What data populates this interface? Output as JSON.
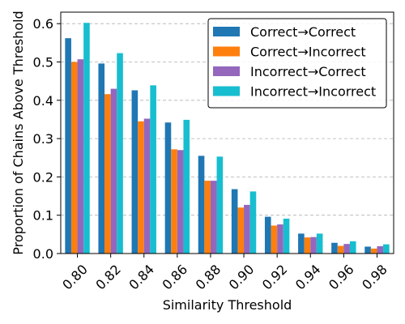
{
  "chart_data": {
    "type": "bar",
    "title": "",
    "xlabel": "Similarity Threshold",
    "ylabel": "Proportion of Chains Above Threshold",
    "ylim": [
      0,
      0.63
    ],
    "yticks": [
      0.0,
      0.1,
      0.2,
      0.3,
      0.4,
      0.5,
      0.6
    ],
    "ytick_labels": [
      "0.0",
      "0.1",
      "0.2",
      "0.3",
      "0.4",
      "0.5",
      "0.6"
    ],
    "grid": "y-dashed",
    "legend_position": "top-right",
    "categories": [
      "0.80",
      "0.82",
      "0.84",
      "0.86",
      "0.88",
      "0.90",
      "0.92",
      "0.94",
      "0.96",
      "0.98"
    ],
    "series": [
      {
        "name": "Correct→Correct",
        "color": "#1f77b4",
        "values": [
          0.562,
          0.496,
          0.426,
          0.342,
          0.255,
          0.168,
          0.096,
          0.052,
          0.028,
          0.018
        ]
      },
      {
        "name": "Correct→Incorrect",
        "color": "#ff7f0e",
        "values": [
          0.5,
          0.416,
          0.345,
          0.272,
          0.19,
          0.12,
          0.073,
          0.042,
          0.02,
          0.013
        ]
      },
      {
        "name": "Incorrect→Correct",
        "color": "#9467bd",
        "values": [
          0.507,
          0.43,
          0.352,
          0.27,
          0.19,
          0.127,
          0.076,
          0.043,
          0.025,
          0.019
        ]
      },
      {
        "name": "Incorrect→Incorrect",
        "color": "#17becf",
        "values": [
          0.602,
          0.523,
          0.439,
          0.349,
          0.253,
          0.162,
          0.091,
          0.052,
          0.032,
          0.024
        ]
      }
    ]
  }
}
